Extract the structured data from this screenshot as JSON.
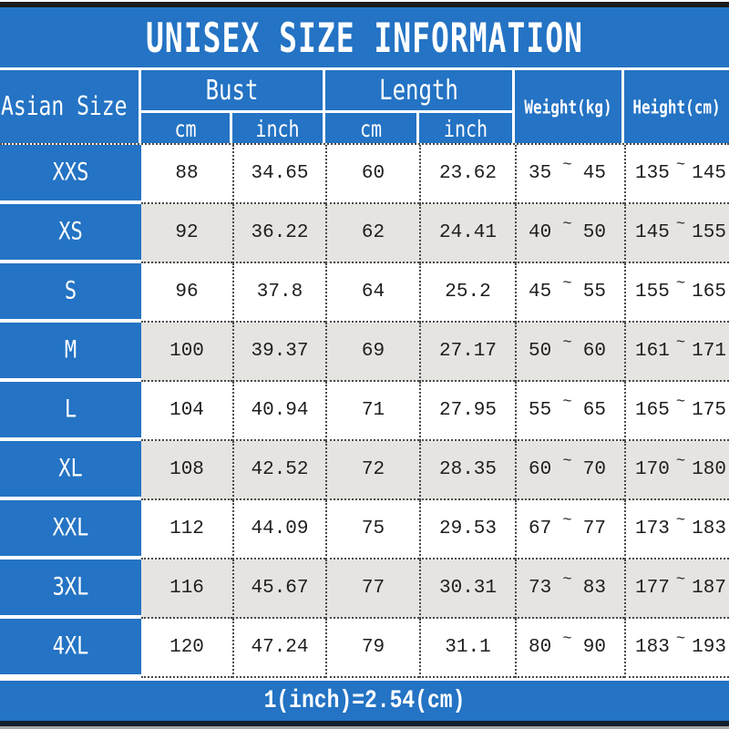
{
  "title": "UNISEX SIZE INFORMATION",
  "tilde": "~",
  "footer": {
    "note": "1(inch)=2.54(cm)"
  },
  "colors": {
    "blue": "#2473C4",
    "row_alternate": "#E6E4E1",
    "text": "#1E1E1E"
  },
  "header": {
    "size_column": "Asian Size",
    "bust": "Bust",
    "length": "Length",
    "cm": "cm",
    "inch": "inch",
    "weight": "Weight(kg)",
    "height": "Height(cm)"
  },
  "rows": [
    {
      "size": "XXS",
      "bust_cm": "88",
      "bust_inch": "34.65",
      "length_cm": "60",
      "length_inch": "23.62",
      "weight_min": "35",
      "weight_max": "45",
      "height_min": "135",
      "height_max": "145"
    },
    {
      "size": "XS",
      "bust_cm": "92",
      "bust_inch": "36.22",
      "length_cm": "62",
      "length_inch": "24.41",
      "weight_min": "40",
      "weight_max": "50",
      "height_min": "145",
      "height_max": "155"
    },
    {
      "size": "S",
      "bust_cm": "96",
      "bust_inch": "37.8",
      "length_cm": "64",
      "length_inch": "25.2",
      "weight_min": "45",
      "weight_max": "55",
      "height_min": "155",
      "height_max": "165"
    },
    {
      "size": "M",
      "bust_cm": "100",
      "bust_inch": "39.37",
      "length_cm": "69",
      "length_inch": "27.17",
      "weight_min": "50",
      "weight_max": "60",
      "height_min": "161",
      "height_max": "171"
    },
    {
      "size": "L",
      "bust_cm": "104",
      "bust_inch": "40.94",
      "length_cm": "71",
      "length_inch": "27.95",
      "weight_min": "55",
      "weight_max": "65",
      "height_min": "165",
      "height_max": "175"
    },
    {
      "size": "XL",
      "bust_cm": "108",
      "bust_inch": "42.52",
      "length_cm": "72",
      "length_inch": "28.35",
      "weight_min": "60",
      "weight_max": "70",
      "height_min": "170",
      "height_max": "180"
    },
    {
      "size": "XXL",
      "bust_cm": "112",
      "bust_inch": "44.09",
      "length_cm": "75",
      "length_inch": "29.53",
      "weight_min": "67",
      "weight_max": "77",
      "height_min": "173",
      "height_max": "183"
    },
    {
      "size": "3XL",
      "bust_cm": "116",
      "bust_inch": "45.67",
      "length_cm": "77",
      "length_inch": "30.31",
      "weight_min": "73",
      "weight_max": "83",
      "height_min": "177",
      "height_max": "187"
    },
    {
      "size": "4XL",
      "bust_cm": "120",
      "bust_inch": "47.24",
      "length_cm": "79",
      "length_inch": "31.1",
      "weight_min": "80",
      "weight_max": "90",
      "height_min": "183",
      "height_max": "193"
    }
  ],
  "chart_data": {
    "type": "table",
    "title": "UNISEX SIZE INFORMATION",
    "columns": [
      "Asian Size",
      "Bust cm",
      "Bust inch",
      "Length cm",
      "Length inch",
      "Weight(kg)",
      "Height(cm)"
    ],
    "rows": [
      [
        "XXS",
        88,
        34.65,
        60,
        23.62,
        "35~45",
        "135~145"
      ],
      [
        "XS",
        92,
        36.22,
        62,
        24.41,
        "40~50",
        "145~155"
      ],
      [
        "S",
        96,
        37.8,
        64,
        25.2,
        "45~55",
        "155~165"
      ],
      [
        "M",
        100,
        39.37,
        69,
        27.17,
        "50~60",
        "161~171"
      ],
      [
        "L",
        104,
        40.94,
        71,
        27.95,
        "55~65",
        "165~175"
      ],
      [
        "XL",
        108,
        42.52,
        72,
        28.35,
        "60~70",
        "170~180"
      ],
      [
        "XXL",
        112,
        44.09,
        75,
        29.53,
        "67~77",
        "173~183"
      ],
      [
        "3XL",
        116,
        45.67,
        77,
        30.31,
        "73~83",
        "177~187"
      ],
      [
        "4XL",
        120,
        47.24,
        79,
        31.1,
        "80~90",
        "183~193"
      ]
    ],
    "footnote": "1(inch)=2.54(cm)"
  }
}
